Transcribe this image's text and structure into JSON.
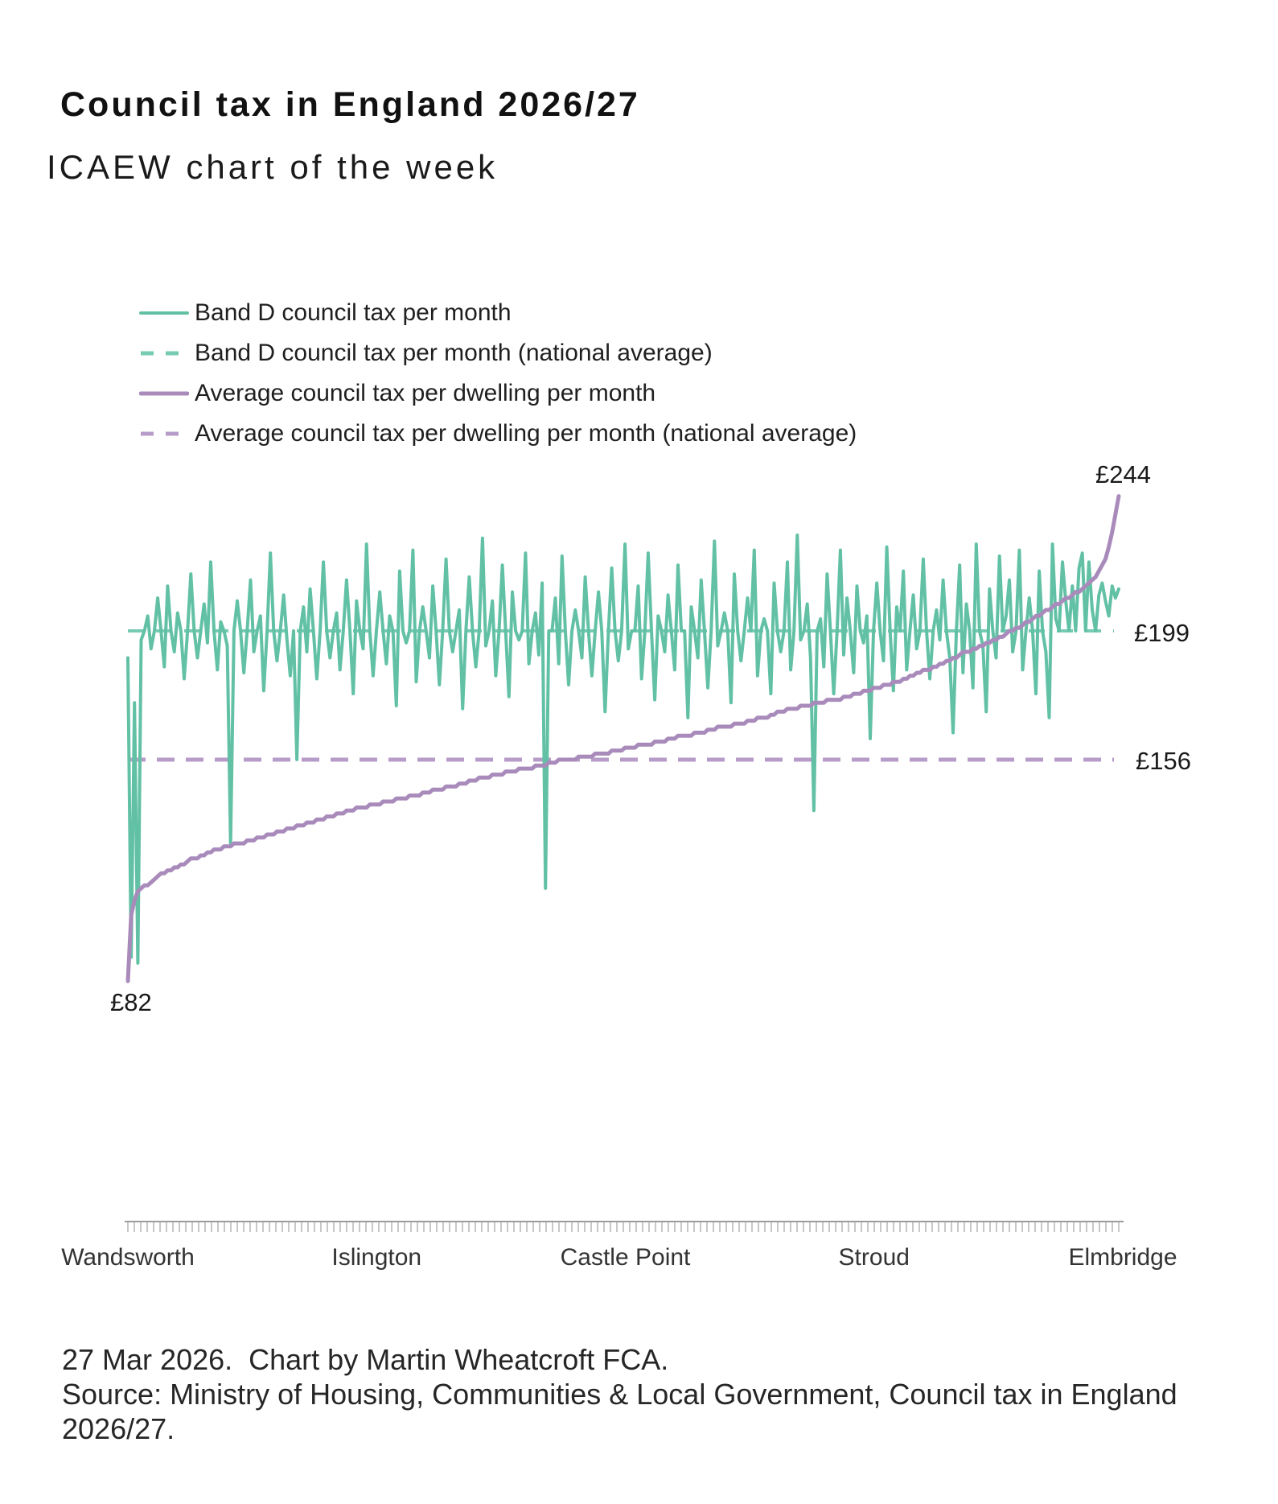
{
  "header": {
    "title": "Council tax in England 2026/27",
    "subtitle": "ICAEW chart of the week"
  },
  "legend": {
    "items": [
      {
        "label": "Band D council tax per month",
        "style": "solid",
        "color": "#62c1a5"
      },
      {
        "label": "Band D council tax per month (national average)",
        "style": "dashed",
        "color": "#76cbb2"
      },
      {
        "label": "Average council tax per dwelling per month",
        "style": "solid",
        "color": "#a98bbb"
      },
      {
        "label": "Average council tax per dwelling per month (national average)",
        "style": "dashed",
        "color": "#b79cc9"
      }
    ]
  },
  "chart_data": {
    "type": "line",
    "title": "Council tax in England 2026/27",
    "x_axis": {
      "description": "English billing authorities sorted by average council tax per dwelling",
      "labels": [
        "Wandsworth",
        "Islington",
        "Castle Point",
        "Stroud",
        "Elmbridge"
      ],
      "label_positions": [
        0,
        0.25,
        0.5,
        0.75,
        1
      ]
    },
    "currency": "£",
    "national_averages": {
      "band_d_per_month": 199,
      "avg_per_dwelling_per_month": 156
    },
    "annotations": [
      {
        "text": "£244",
        "value": 244,
        "refers_to": "highest average council tax per dwelling (Elmbridge end)"
      },
      {
        "text": "£199",
        "value": 199,
        "refers_to": "Band D national average line"
      },
      {
        "text": "£156",
        "value": 156,
        "refers_to": "average per dwelling national average line"
      },
      {
        "text": "£82",
        "value": 82,
        "refers_to": "lowest average council tax per dwelling (Wandsworth end)"
      }
    ],
    "series": [
      {
        "name": "Band D council tax per month",
        "color": "#62c1a5",
        "style": "solid",
        "values": [
          190,
          90,
          175,
          88,
          196,
          199,
          204,
          193,
          199,
          210,
          199,
          187,
          214,
          199,
          192,
          205,
          199,
          183,
          199,
          218,
          199,
          190,
          199,
          208,
          195,
          222,
          199,
          186,
          202,
          199,
          194,
          128,
          199,
          209,
          199,
          185,
          199,
          216,
          192,
          199,
          204,
          179,
          199,
          225,
          199,
          189,
          199,
          211,
          196,
          184,
          199,
          156,
          199,
          207,
          192,
          213,
          199,
          183,
          199,
          222,
          199,
          190,
          199,
          205,
          186,
          199,
          216,
          199,
          178,
          209,
          199,
          193,
          228,
          199,
          184,
          199,
          212,
          199,
          188,
          204,
          199,
          174,
          219,
          199,
          195,
          199,
          226,
          182,
          199,
          207,
          199,
          190,
          214,
          199,
          181,
          199,
          223,
          199,
          192,
          199,
          206,
          173,
          199,
          217,
          199,
          187,
          199,
          230,
          194,
          199,
          209,
          184,
          199,
          221,
          199,
          177,
          212,
          199,
          196,
          199,
          225,
          188,
          199,
          205,
          191,
          215,
          113,
          199,
          199,
          210,
          188,
          224,
          199,
          181,
          199,
          206,
          199,
          190,
          217,
          199,
          184,
          199,
          212,
          199,
          172,
          199,
          220,
          199,
          189,
          199,
          228,
          193,
          199,
          199,
          214,
          183,
          199,
          225,
          199,
          176,
          204,
          199,
          192,
          211,
          199,
          186,
          221,
          199,
          199,
          170,
          207,
          199,
          190,
          216,
          199,
          180,
          199,
          229,
          194,
          199,
          205,
          199,
          175,
          218,
          199,
          189,
          199,
          210,
          199,
          226,
          184,
          199,
          203,
          199,
          178,
          215,
          199,
          192,
          199,
          222,
          186,
          199,
          231,
          196,
          199,
          208,
          190,
          139,
          199,
          203,
          187,
          218,
          199,
          178,
          199,
          226,
          191,
          210,
          199,
          185,
          214,
          199,
          195,
          204,
          163,
          199,
          215,
          199,
          189,
          227,
          199,
          179,
          207,
          199,
          219,
          186,
          199,
          211,
          193,
          199,
          223,
          199,
          183,
          199,
          206,
          196,
          216,
          199,
          190,
          165,
          199,
          221,
          185,
          208,
          199,
          180,
          228,
          199,
          194,
          172,
          213,
          199,
          190,
          224,
          199,
          204,
          216,
          192,
          199,
          226,
          186,
          199,
          210,
          199,
          178,
          219,
          199,
          192,
          170,
          228,
          203,
          199,
          222,
          209,
          199,
          214,
          199,
          220,
          225,
          199,
          222,
          206,
          199,
          211,
          215,
          209,
          204,
          214,
          210,
          213
        ]
      },
      {
        "name": "Average council tax per dwelling per month",
        "color": "#a98bbb",
        "style": "solid",
        "values": [
          82,
          104,
          109,
          112,
          113,
          114,
          114,
          115,
          116,
          117,
          118,
          118,
          119,
          119,
          120,
          120,
          121,
          121,
          122,
          123,
          123,
          123,
          124,
          124,
          125,
          125,
          126,
          126,
          126,
          127,
          127,
          127,
          128,
          128,
          128,
          128,
          129,
          129,
          129,
          130,
          130,
          130,
          131,
          131,
          131,
          132,
          132,
          132,
          133,
          133,
          133,
          134,
          134,
          134,
          135,
          135,
          135,
          136,
          136,
          136,
          137,
          137,
          137,
          138,
          138,
          138,
          139,
          139,
          139,
          140,
          140,
          140,
          140,
          141,
          141,
          141,
          141,
          142,
          142,
          142,
          142,
          143,
          143,
          143,
          143,
          144,
          144,
          144,
          144,
          145,
          145,
          145,
          146,
          146,
          146,
          146,
          147,
          147,
          147,
          147,
          148,
          148,
          148,
          149,
          149,
          149,
          150,
          150,
          150,
          150,
          151,
          151,
          151,
          151,
          152,
          152,
          152,
          152,
          153,
          153,
          153,
          153,
          153,
          154,
          154,
          154,
          154,
          155,
          155,
          155,
          156,
          156,
          156,
          156,
          156,
          156,
          157,
          157,
          157,
          157,
          157,
          158,
          158,
          158,
          158,
          158,
          159,
          159,
          159,
          159,
          160,
          160,
          160,
          160,
          161,
          161,
          161,
          161,
          161,
          162,
          162,
          162,
          162,
          163,
          163,
          163,
          164,
          164,
          164,
          164,
          164,
          165,
          165,
          165,
          165,
          166,
          166,
          166,
          167,
          167,
          167,
          167,
          167,
          168,
          168,
          168,
          168,
          169,
          169,
          169,
          170,
          170,
          170,
          170,
          171,
          171,
          172,
          172,
          172,
          173,
          173,
          173,
          173,
          174,
          174,
          174,
          174,
          175,
          175,
          175,
          175,
          176,
          176,
          176,
          176,
          176,
          177,
          177,
          177,
          178,
          178,
          178,
          179,
          179,
          179,
          180,
          180,
          180,
          181,
          181,
          181,
          182,
          182,
          182,
          183,
          183,
          184,
          184,
          185,
          185,
          186,
          186,
          186,
          187,
          187,
          188,
          188,
          189,
          189,
          190,
          190,
          191,
          192,
          192,
          192,
          193,
          193,
          194,
          194,
          195,
          195,
          196,
          196,
          197,
          197,
          198,
          199,
          199,
          200,
          200,
          201,
          202,
          202,
          203,
          204,
          204,
          205,
          206,
          206,
          207,
          208,
          208,
          209,
          210,
          210,
          211,
          212,
          212,
          213,
          214,
          215,
          216,
          217,
          219,
          221,
          223,
          227,
          232,
          238,
          244
        ]
      }
    ],
    "dashed_series": [
      {
        "name": "Band D council tax per month (national average)",
        "color": "#76cbb2",
        "value": 199
      },
      {
        "name": "Average council tax per dwelling per month (national average)",
        "color": "#b79cc9",
        "value": 156
      }
    ]
  },
  "footer": {
    "lines": [
      "27 Mar 2026.  Chart by Martin Wheatcroft FCA.",
      "Source: Ministry of Housing, Communities & Local Government, Council tax in England",
      "2026/27."
    ]
  }
}
